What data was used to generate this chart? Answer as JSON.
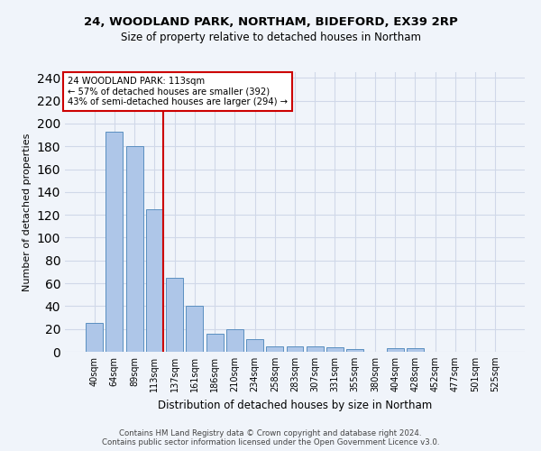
{
  "title1": "24, WOODLAND PARK, NORTHAM, BIDEFORD, EX39 2RP",
  "title2": "Size of property relative to detached houses in Northam",
  "xlabel": "Distribution of detached houses by size in Northam",
  "ylabel": "Number of detached properties",
  "footer1": "Contains HM Land Registry data © Crown copyright and database right 2024.",
  "footer2": "Contains public sector information licensed under the Open Government Licence v3.0.",
  "categories": [
    "40sqm",
    "64sqm",
    "89sqm",
    "113sqm",
    "137sqm",
    "161sqm",
    "186sqm",
    "210sqm",
    "234sqm",
    "258sqm",
    "283sqm",
    "307sqm",
    "331sqm",
    "355sqm",
    "380sqm",
    "404sqm",
    "428sqm",
    "452sqm",
    "477sqm",
    "501sqm",
    "525sqm"
  ],
  "values": [
    25,
    193,
    180,
    125,
    65,
    40,
    16,
    20,
    11,
    5,
    5,
    5,
    4,
    2,
    0,
    3,
    3,
    0,
    0,
    0,
    0
  ],
  "bar_color": "#aec6e8",
  "bar_edge_color": "#5a8fc0",
  "property_size_label": "113sqm",
  "annotation_line1": "24 WOODLAND PARK: 113sqm",
  "annotation_line2": "← 57% of detached houses are smaller (392)",
  "annotation_line3": "43% of semi-detached houses are larger (294) →",
  "vline_color": "#cc0000",
  "annotation_box_color": "#ffffff",
  "annotation_box_edge": "#cc0000",
  "grid_color": "#d0d8e8",
  "bg_color": "#f0f4fa",
  "ylim": [
    0,
    245
  ],
  "yticks": [
    0,
    20,
    40,
    60,
    80,
    100,
    120,
    140,
    160,
    180,
    200,
    220,
    240
  ]
}
